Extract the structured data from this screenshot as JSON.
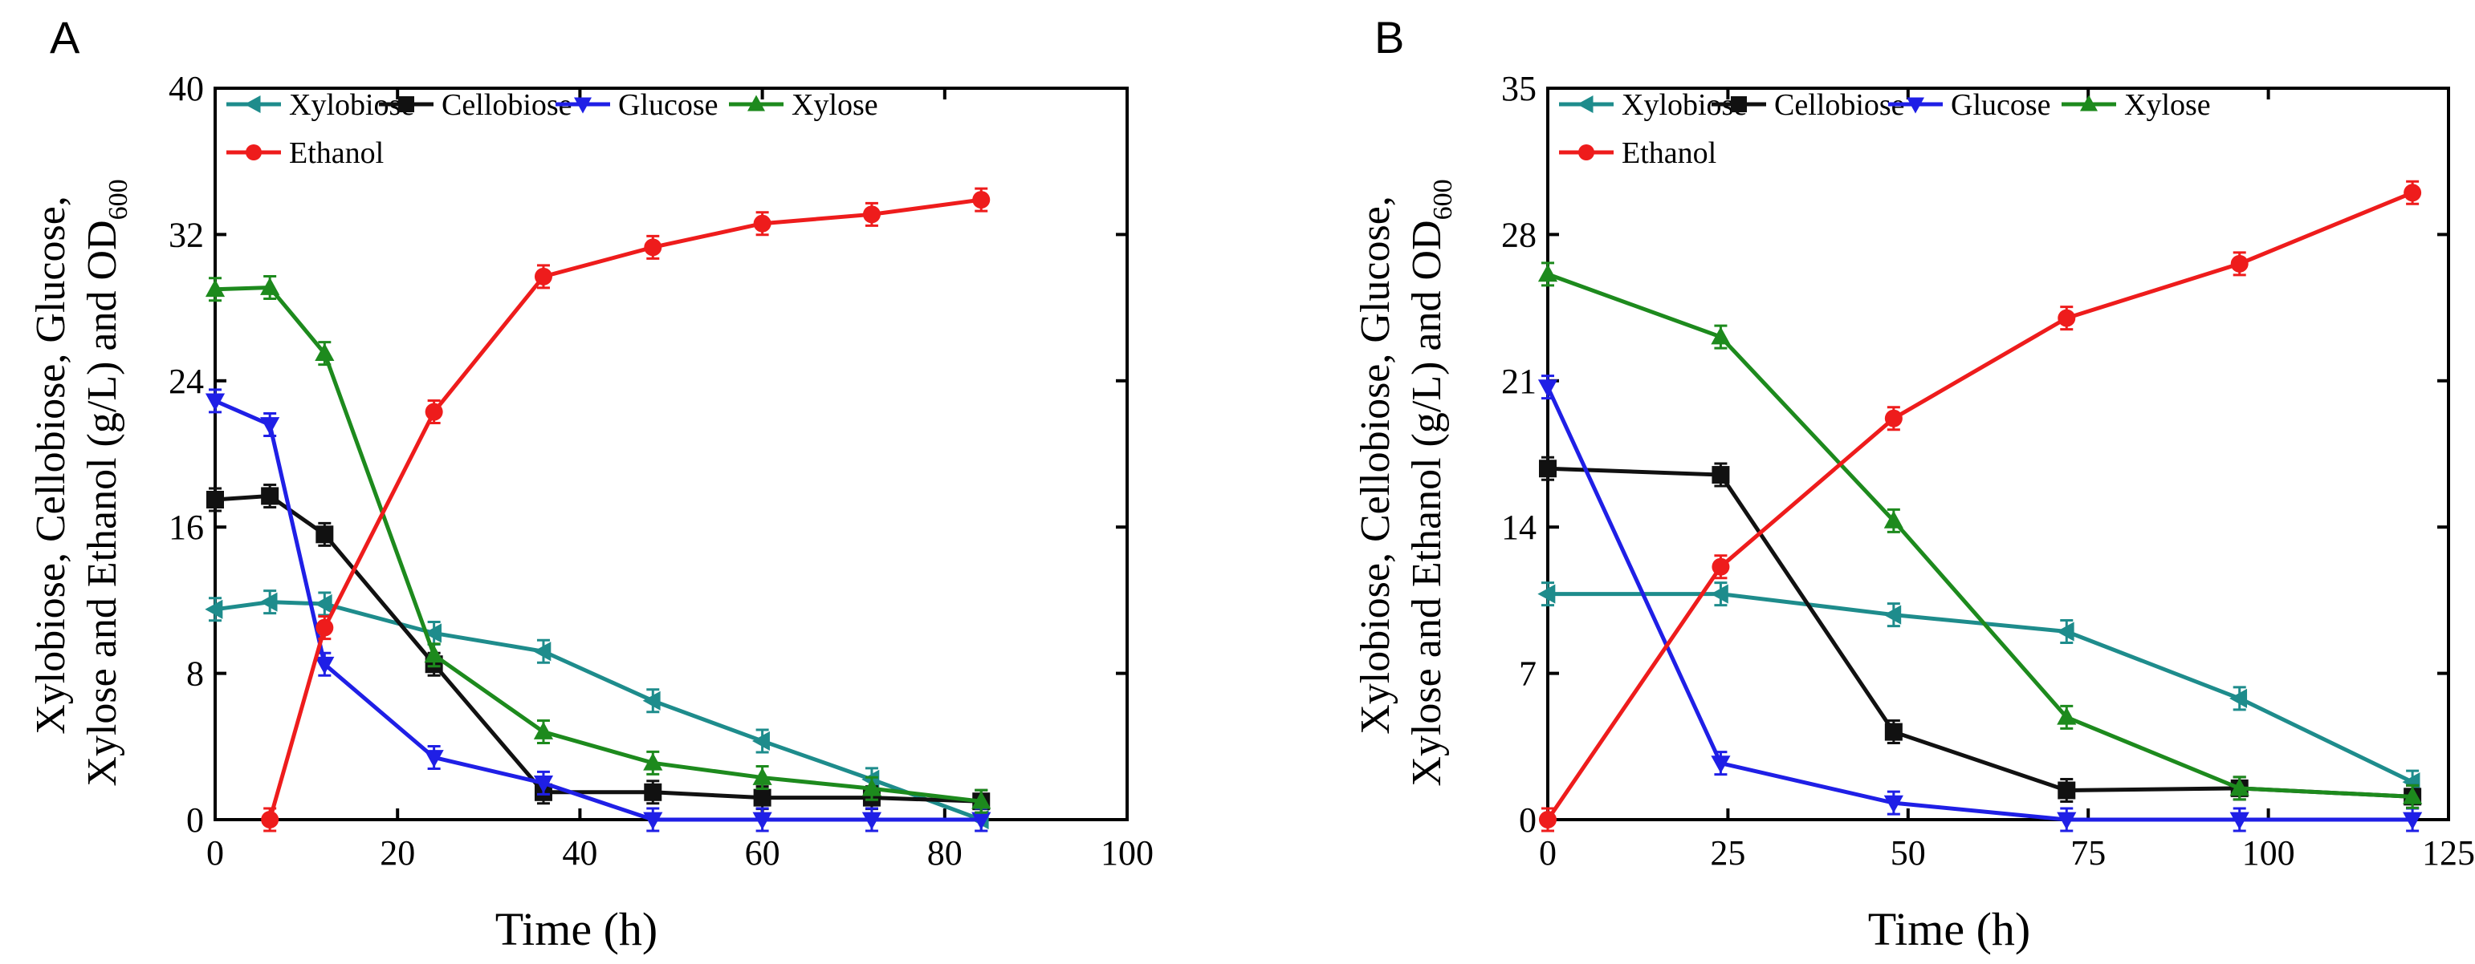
{
  "chart_data": [
    {
      "type": "line",
      "panel_label": "A",
      "xlabel": "Time (h)",
      "ylabel_lines": [
        "Xylobiose, Cellobiose, Glucose,",
        "Xylose and Ethanol (g/L) and OD",
        "600"
      ],
      "xlim": [
        0,
        100
      ],
      "ylim": [
        0,
        40
      ],
      "xticks": [
        0,
        20,
        40,
        60,
        80,
        100
      ],
      "yticks": [
        0,
        8,
        16,
        24,
        32,
        40
      ],
      "legend_position": "top",
      "series": [
        {
          "name": "Xylobiose",
          "color": "#1e8c8c",
          "marker": "left-triangle",
          "x": [
            0,
            6,
            12,
            24,
            36,
            48,
            60,
            72,
            84
          ],
          "y": [
            11.5,
            11.9,
            11.8,
            10.2,
            9.2,
            6.5,
            4.3,
            2.2,
            0
          ]
        },
        {
          "name": "Cellobiose",
          "color": "#111111",
          "marker": "square",
          "x": [
            0,
            6,
            12,
            24,
            36,
            48,
            60,
            72,
            84
          ],
          "y": [
            17.5,
            17.7,
            15.6,
            8.5,
            1.5,
            1.5,
            1.2,
            1.2,
            1.0
          ]
        },
        {
          "name": "Glucose",
          "color": "#1f1fe6",
          "marker": "down-triangle",
          "x": [
            0,
            6,
            12,
            24,
            36,
            48,
            60,
            72,
            84
          ],
          "y": [
            22.9,
            21.6,
            8.5,
            3.4,
            2.0,
            0,
            0,
            0,
            0
          ]
        },
        {
          "name": "Xylose",
          "color": "#1d8a1d",
          "marker": "up-triangle",
          "x": [
            0,
            6,
            12,
            24,
            36,
            48,
            60,
            72,
            84
          ],
          "y": [
            29.0,
            29.1,
            25.5,
            9.0,
            4.8,
            3.1,
            2.3,
            1.7,
            1.0
          ]
        },
        {
          "name": "Ethanol",
          "color": "#ee1c1c",
          "marker": "circle",
          "x": [
            6,
            12,
            24,
            36,
            48,
            60,
            72,
            84
          ],
          "y": [
            0,
            10.5,
            22.3,
            29.7,
            31.3,
            32.6,
            33.1,
            33.9
          ]
        }
      ]
    },
    {
      "type": "line",
      "panel_label": "B",
      "xlabel": "Time (h)",
      "ylabel_lines": [
        "Xylobiose, Cellobiose, Glucose,",
        "Xylose and Ethanol (g/L) and OD",
        "600"
      ],
      "xlim": [
        0,
        125
      ],
      "ylim": [
        0,
        35
      ],
      "xticks": [
        0,
        25,
        50,
        75,
        100,
        125
      ],
      "yticks": [
        0,
        7,
        14,
        21,
        28,
        35
      ],
      "legend_position": "top",
      "series": [
        {
          "name": "Xylobiose",
          "color": "#1e8c8c",
          "marker": "left-triangle",
          "x": [
            0,
            24,
            48,
            72,
            96,
            120
          ],
          "y": [
            10.8,
            10.8,
            9.8,
            9.0,
            5.8,
            1.8
          ]
        },
        {
          "name": "Cellobiose",
          "color": "#111111",
          "marker": "square",
          "x": [
            0,
            24,
            48,
            72,
            96,
            120
          ],
          "y": [
            16.8,
            16.5,
            4.2,
            1.4,
            1.5,
            1.1
          ]
        },
        {
          "name": "Glucose",
          "color": "#1f1fe6",
          "marker": "down-triangle",
          "x": [
            0,
            24,
            48,
            72,
            96,
            120
          ],
          "y": [
            20.7,
            2.7,
            0.8,
            0,
            0,
            0
          ]
        },
        {
          "name": "Xylose",
          "color": "#1d8a1d",
          "marker": "up-triangle",
          "x": [
            0,
            24,
            48,
            72,
            96,
            120
          ],
          "y": [
            26.1,
            23.1,
            14.3,
            4.9,
            1.5,
            1.1
          ]
        },
        {
          "name": "Ethanol",
          "color": "#ee1c1c",
          "marker": "circle",
          "x": [
            0,
            24,
            48,
            72,
            96,
            120
          ],
          "y": [
            0,
            12.1,
            19.2,
            24.0,
            26.6,
            30.0
          ]
        }
      ]
    }
  ]
}
